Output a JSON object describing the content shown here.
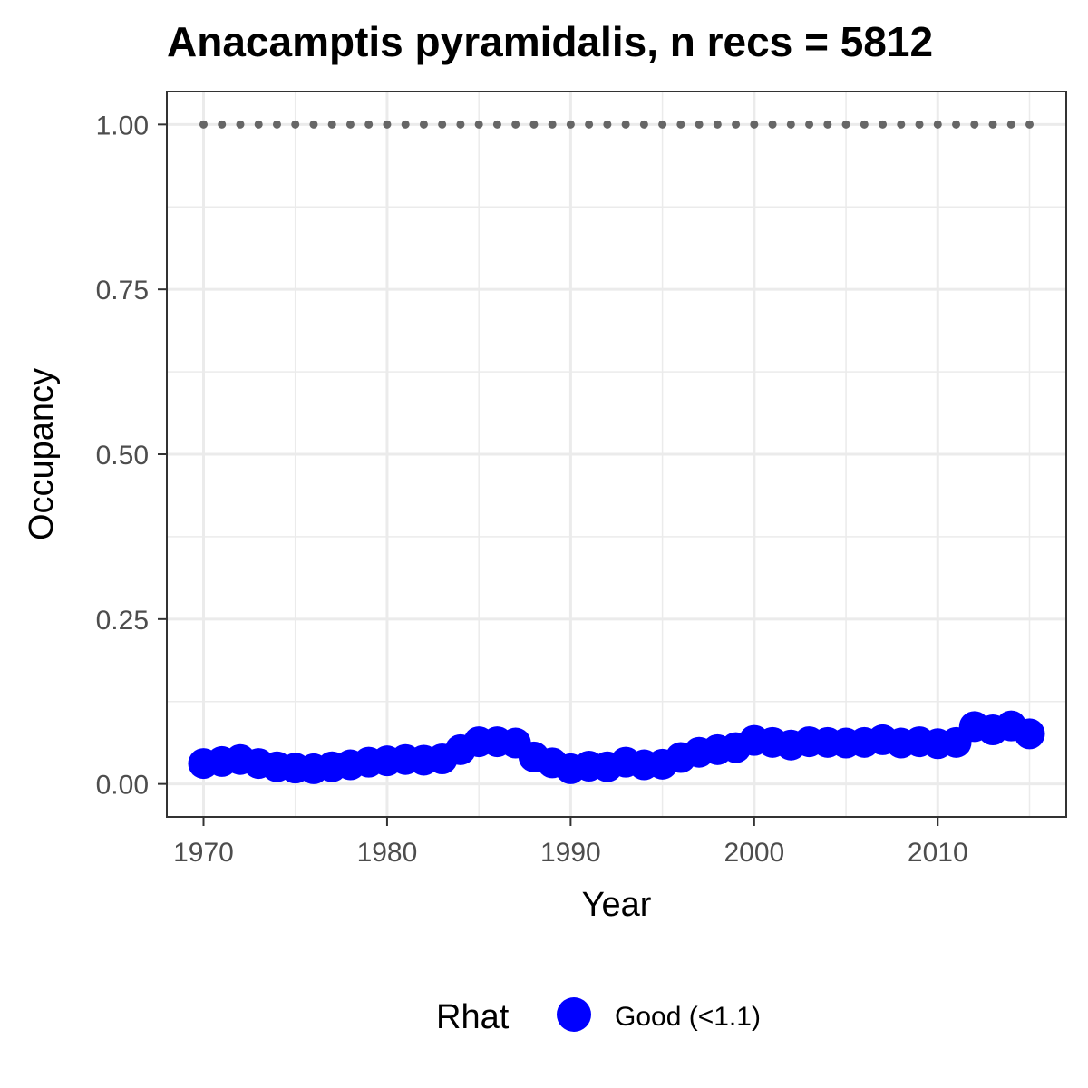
{
  "chart_data": {
    "type": "scatter",
    "title": "Anacamptis pyramidalis, n recs = 5812",
    "xlabel": "Year",
    "ylabel": "Occupancy",
    "xlim": [
      1968,
      2017
    ],
    "ylim": [
      -0.05,
      1.05
    ],
    "x_ticks": [
      1970,
      1980,
      1990,
      2000,
      2010
    ],
    "x_tick_labels": [
      "1970",
      "1980",
      "1990",
      "2000",
      "2010"
    ],
    "y_ticks": [
      0.0,
      0.25,
      0.5,
      0.75,
      1.0
    ],
    "y_tick_labels": [
      "0.00",
      "0.25",
      "0.50",
      "0.75",
      "1.00"
    ],
    "grid": true,
    "legend_position": "bottom",
    "legend": {
      "title": "Rhat",
      "entries": [
        {
          "label": "Good (<1.1)",
          "color": "#0000ff"
        }
      ]
    },
    "series": [
      {
        "name": "Good (<1.1)",
        "color": "#0000ff",
        "x": [
          1970,
          1971,
          1972,
          1973,
          1974,
          1975,
          1976,
          1977,
          1978,
          1979,
          1980,
          1981,
          1982,
          1983,
          1984,
          1985,
          1986,
          1987,
          1988,
          1989,
          1990,
          1991,
          1992,
          1993,
          1994,
          1995,
          1996,
          1997,
          1998,
          1999,
          2000,
          2001,
          2002,
          2003,
          2004,
          2005,
          2006,
          2007,
          2008,
          2009,
          2010,
          2011,
          2012,
          2013,
          2014,
          2015
        ],
        "y": [
          0.031,
          0.034,
          0.037,
          0.031,
          0.026,
          0.024,
          0.023,
          0.026,
          0.029,
          0.033,
          0.035,
          0.037,
          0.036,
          0.038,
          0.052,
          0.064,
          0.064,
          0.062,
          0.041,
          0.032,
          0.023,
          0.027,
          0.026,
          0.033,
          0.029,
          0.03,
          0.04,
          0.048,
          0.052,
          0.055,
          0.066,
          0.063,
          0.059,
          0.064,
          0.063,
          0.062,
          0.063,
          0.067,
          0.062,
          0.064,
          0.061,
          0.063,
          0.087,
          0.082,
          0.088,
          0.076
        ]
      },
      {
        "name": "",
        "color": "#666666",
        "x": [
          1970,
          1971,
          1972,
          1973,
          1974,
          1975,
          1976,
          1977,
          1978,
          1979,
          1980,
          1981,
          1982,
          1983,
          1984,
          1985,
          1986,
          1987,
          1988,
          1989,
          1990,
          1991,
          1992,
          1993,
          1994,
          1995,
          1996,
          1997,
          1998,
          1999,
          2000,
          2001,
          2002,
          2003,
          2004,
          2005,
          2006,
          2007,
          2008,
          2009,
          2010,
          2011,
          2012,
          2013,
          2014,
          2015
        ],
        "y": [
          1,
          1,
          1,
          1,
          1,
          1,
          1,
          1,
          1,
          1,
          1,
          1,
          1,
          1,
          1,
          1,
          1,
          1,
          1,
          1,
          1,
          1,
          1,
          1,
          1,
          1,
          1,
          1,
          1,
          1,
          1,
          1,
          1,
          1,
          1,
          1,
          1,
          1,
          1,
          1,
          1,
          1,
          1,
          1,
          1,
          1
        ]
      }
    ]
  }
}
